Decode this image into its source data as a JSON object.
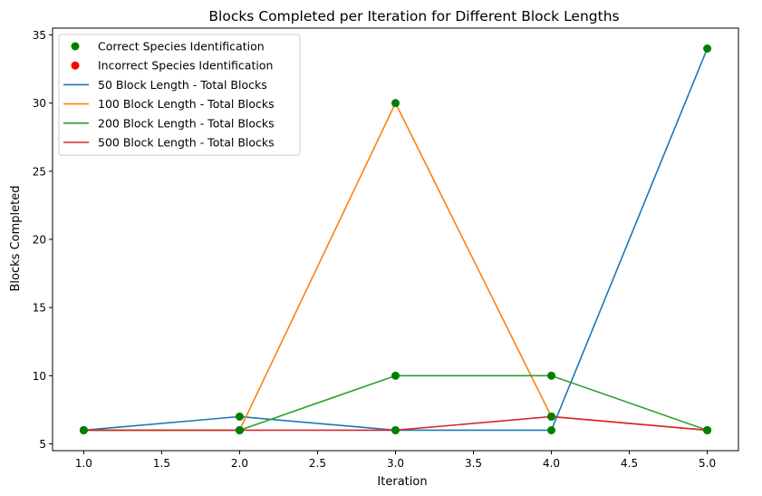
{
  "chart_data": {
    "type": "line",
    "title": "Blocks Completed per Iteration for Different Block Lengths",
    "xlabel": "Iteration",
    "ylabel": "Blocks Completed",
    "xlim": [
      0.8,
      5.2
    ],
    "ylim": [
      4.5,
      35.5
    ],
    "xticks": [
      1.0,
      1.5,
      2.0,
      2.5,
      3.0,
      3.5,
      4.0,
      4.5,
      5.0
    ],
    "xtick_labels": [
      "1.0",
      "1.5",
      "2.0",
      "2.5",
      "3.0",
      "3.5",
      "4.0",
      "4.5",
      "5.0"
    ],
    "yticks": [
      5,
      10,
      15,
      20,
      25,
      30,
      35
    ],
    "ytick_labels": [
      "5",
      "10",
      "15",
      "20",
      "25",
      "30",
      "35"
    ],
    "grid": false,
    "legend_position": "top-left",
    "x": [
      1,
      2,
      3,
      4,
      5
    ],
    "series": [
      {
        "name": "50 Block Length - Total Blocks",
        "color": "#1f77b4",
        "values": [
          6,
          7,
          6,
          6,
          34
        ]
      },
      {
        "name": "100 Block Length - Total Blocks",
        "color": "#ff7f0e",
        "values": [
          6,
          6,
          30,
          7,
          6
        ]
      },
      {
        "name": "200 Block Length - Total Blocks",
        "color": "#2ca02c",
        "values": [
          6,
          6,
          10,
          10,
          6
        ]
      },
      {
        "name": "500 Block Length - Total Blocks",
        "color": "#d62728",
        "values": [
          6,
          6,
          6,
          7,
          6
        ]
      }
    ],
    "scatter_series": [
      {
        "name": "Correct Species Identification",
        "color": "#008000",
        "points": [
          [
            1,
            6
          ],
          [
            2,
            7
          ],
          [
            3,
            6
          ],
          [
            4,
            6
          ],
          [
            5,
            34
          ],
          [
            1,
            6
          ],
          [
            2,
            6
          ],
          [
            3,
            30
          ],
          [
            4,
            7
          ],
          [
            5,
            6
          ],
          [
            1,
            6
          ],
          [
            2,
            6
          ],
          [
            3,
            10
          ],
          [
            4,
            10
          ],
          [
            5,
            6
          ],
          [
            1,
            6
          ],
          [
            2,
            6
          ],
          [
            3,
            6
          ],
          [
            4,
            7
          ],
          [
            5,
            6
          ]
        ]
      },
      {
        "name": "Incorrect Species Identification",
        "color": "#ff0000",
        "points": []
      }
    ]
  }
}
